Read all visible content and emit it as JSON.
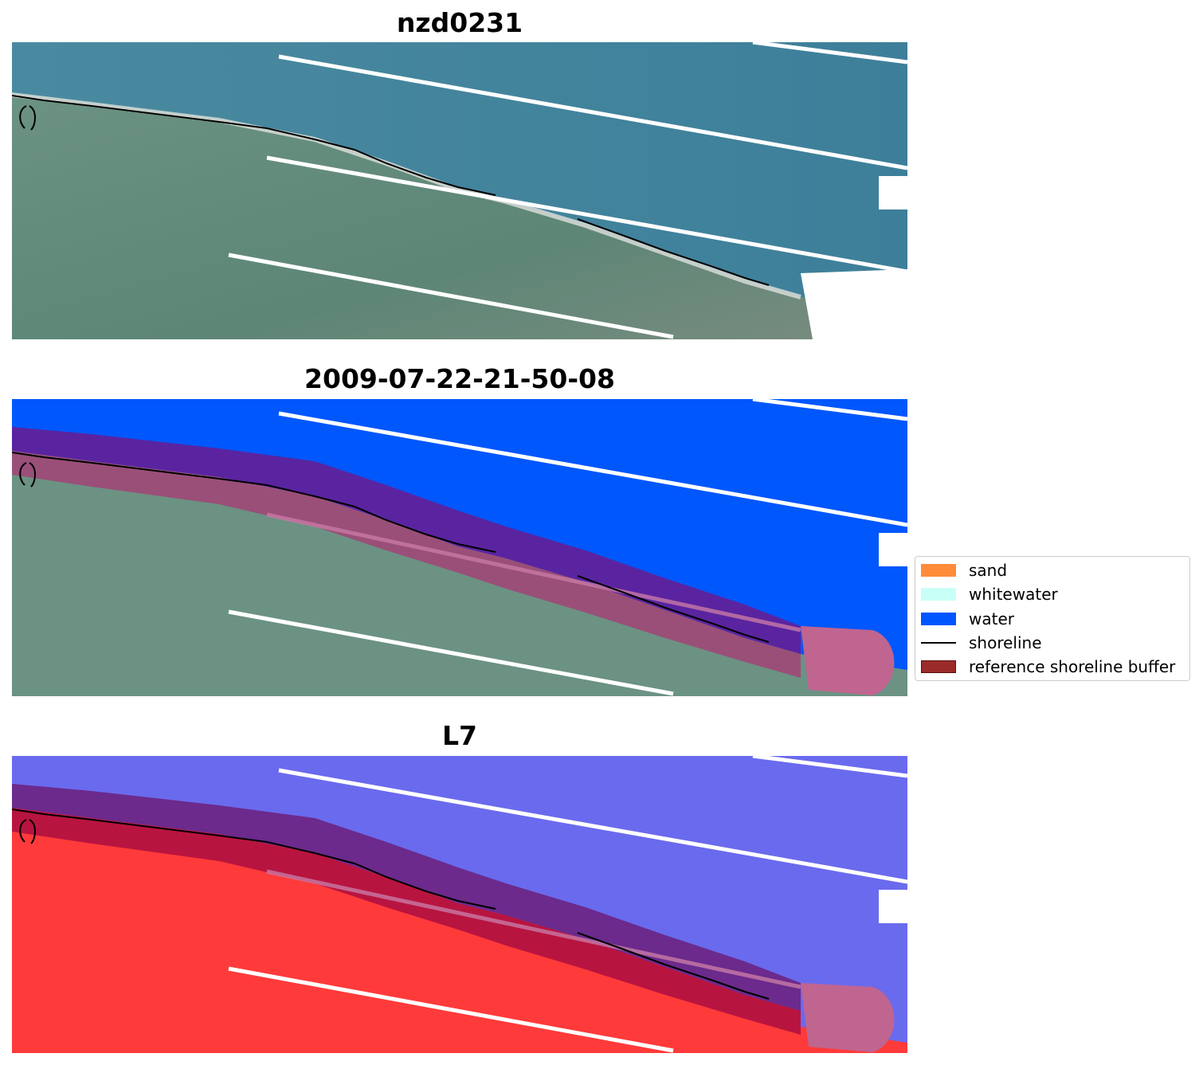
{
  "titles": {
    "panel1": "nzd0231",
    "panel2": "2009-07-22-21-50-08",
    "panel3": "L7"
  },
  "legend": {
    "items": [
      {
        "label": "sand",
        "color": "#ff8c3a"
      },
      {
        "label": "whitewater",
        "color": "#c8fff7"
      },
      {
        "label": "water",
        "color": "#0055ff"
      },
      {
        "label": "shoreline",
        "color": "#000000"
      },
      {
        "label": "reference shoreline buffer",
        "color": "#9b2a2a"
      }
    ]
  },
  "colors": {
    "ocean": "#3f7f9c",
    "land": "#5d8a7a",
    "water_class": "#0057fc",
    "buffer_water": "#5a24a0",
    "buffer_land": "#9a4f78",
    "buffer_end": "#bf6590",
    "index_water": "#6a6aee",
    "index_land": "#ff3a3a",
    "index_buffer_water": "#6b2a8c",
    "index_buffer_land": "#b81440",
    "shoreline": "#000000",
    "nodata_stripe": "#ffffff"
  }
}
